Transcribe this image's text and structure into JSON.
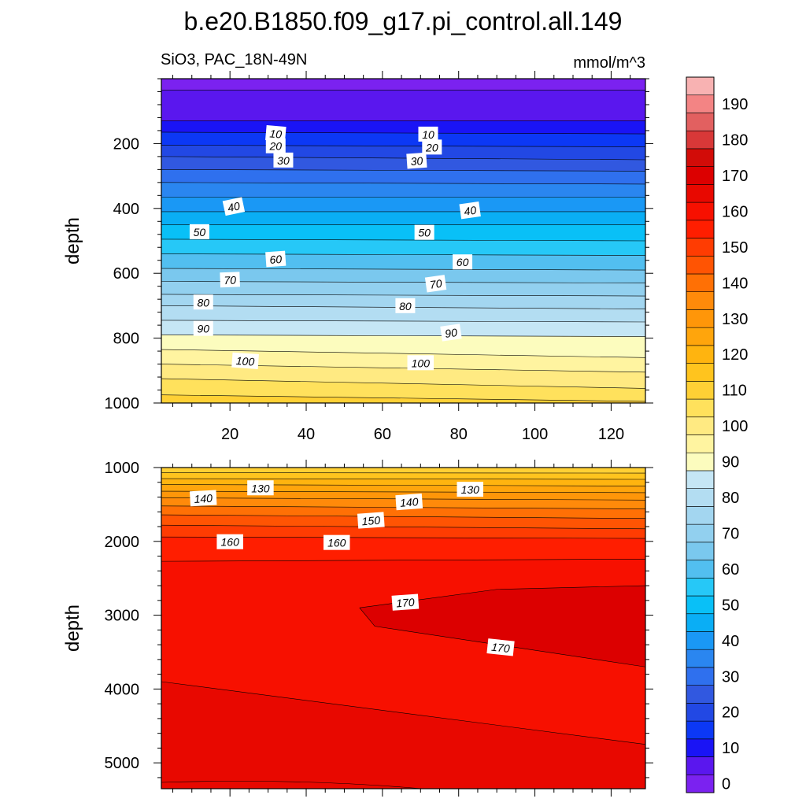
{
  "title": "b.e20.B1850.f09_g17.pi_control.all.149",
  "subtitle_left": "SiO3, PAC_18N-49N",
  "subtitle_right": "mmol/m^3",
  "chart_data": {
    "type": "heatmap",
    "title": "b.e20.B1850.f09_g17.pi_control.all.149",
    "variable": "SiO3",
    "region": "PAC_18N-49N",
    "units": "mmol/m^3",
    "x": {
      "range": [
        2,
        129
      ],
      "ticks": [
        20,
        40,
        60,
        80,
        100,
        120
      ],
      "label": ""
    },
    "colorbar": {
      "levels": [
        0,
        5,
        10,
        15,
        20,
        25,
        30,
        35,
        40,
        45,
        50,
        55,
        60,
        65,
        70,
        75,
        80,
        85,
        90,
        95,
        100,
        105,
        110,
        115,
        120,
        125,
        130,
        135,
        140,
        145,
        150,
        155,
        160,
        165,
        170,
        175,
        180,
        185,
        190,
        195
      ],
      "labels": [
        "0",
        "10",
        "20",
        "30",
        "40",
        "50",
        "60",
        "70",
        "80",
        "90",
        "100",
        "110",
        "120",
        "130",
        "140",
        "150",
        "160",
        "170",
        "180",
        "190"
      ],
      "colors": [
        "#7b22f0",
        "#5a17ee",
        "#1a14f5",
        "#0c38f5",
        "#2248e4",
        "#3158e0",
        "#2f70ee",
        "#2a86f0",
        "#1a98f5",
        "#0aaef5",
        "#09c0f7",
        "#26c8f7",
        "#52bff0",
        "#7ac8ee",
        "#92d0ef",
        "#a3d6f0",
        "#b3ddf2",
        "#c5e6f5",
        "#fcfcbe",
        "#fff4a0",
        "#ffea82",
        "#ffe15c",
        "#ffd035",
        "#ffc41e",
        "#ffb40f",
        "#ffa50c",
        "#ff9609",
        "#ff8a0a",
        "#ff7005",
        "#ff5403",
        "#ff3c02",
        "#ff1e00",
        "#f71000",
        "#e80800",
        "#dc0000",
        "#d20c08",
        "#d83838",
        "#e26060",
        "#f38484",
        "#f8b2b2"
      ]
    },
    "panels": [
      {
        "name": "upper",
        "ylabel": "depth",
        "y": {
          "range": [
            0,
            1000
          ],
          "reversed": true,
          "ticks": [
            200,
            400,
            600,
            800,
            1000
          ]
        },
        "contours": [
          {
            "level": 5,
            "depth_left": 35,
            "depth_right": 35
          },
          {
            "level": 10,
            "depth_left": 130,
            "depth_right": 130
          },
          {
            "level": 15,
            "depth_left": 165,
            "depth_right": 170
          },
          {
            "level": 20,
            "depth_left": 205,
            "depth_right": 210
          },
          {
            "level": 25,
            "depth_left": 240,
            "depth_right": 250
          },
          {
            "level": 30,
            "depth_left": 280,
            "depth_right": 285
          },
          {
            "level": 35,
            "depth_left": 320,
            "depth_right": 325
          },
          {
            "level": 40,
            "depth_left": 365,
            "depth_right": 365
          },
          {
            "level": 45,
            "depth_left": 410,
            "depth_right": 410
          },
          {
            "level": 50,
            "depth_left": 450,
            "depth_right": 450
          },
          {
            "level": 55,
            "depth_left": 495,
            "depth_right": 500
          },
          {
            "level": 60,
            "depth_left": 540,
            "depth_right": 545
          },
          {
            "level": 65,
            "depth_left": 585,
            "depth_right": 590
          },
          {
            "level": 70,
            "depth_left": 625,
            "depth_right": 630
          },
          {
            "level": 75,
            "depth_left": 665,
            "depth_right": 670
          },
          {
            "level": 80,
            "depth_left": 700,
            "depth_right": 710
          },
          {
            "level": 85,
            "depth_left": 745,
            "depth_right": 750
          },
          {
            "level": 90,
            "depth_left": 790,
            "depth_right": 795
          },
          {
            "level": 95,
            "depth_left": 835,
            "depth_right": 860
          },
          {
            "level": 100,
            "depth_left": 880,
            "depth_right": 905
          },
          {
            "level": 105,
            "depth_left": 925,
            "depth_right": 955
          },
          {
            "level": 110,
            "depth_left": 975,
            "depth_right": 995
          }
        ],
        "labels": [
          {
            "text": "10",
            "x": 32,
            "depth": 170,
            "angle": 5
          },
          {
            "text": "10",
            "x": 72,
            "depth": 172,
            "angle": 0
          },
          {
            "text": "20",
            "x": 32,
            "depth": 208,
            "angle": 0
          },
          {
            "text": "20",
            "x": 73,
            "depth": 212,
            "angle": 0
          },
          {
            "text": "30",
            "x": 34,
            "depth": 252,
            "angle": 0
          },
          {
            "text": "30",
            "x": 69,
            "depth": 254,
            "angle": -4
          },
          {
            "text": "40",
            "x": 21,
            "depth": 395,
            "angle": -12
          },
          {
            "text": "40",
            "x": 83,
            "depth": 407,
            "angle": -8
          },
          {
            "text": "50",
            "x": 12,
            "depth": 473,
            "angle": 0
          },
          {
            "text": "50",
            "x": 71,
            "depth": 475,
            "angle": 0
          },
          {
            "text": "60",
            "x": 32,
            "depth": 557,
            "angle": -4
          },
          {
            "text": "60",
            "x": 81,
            "depth": 566,
            "angle": 0
          },
          {
            "text": "70",
            "x": 20,
            "depth": 621,
            "angle": -2
          },
          {
            "text": "70",
            "x": 74,
            "depth": 633,
            "angle": -8
          },
          {
            "text": "80",
            "x": 13,
            "depth": 690,
            "angle": 0
          },
          {
            "text": "80",
            "x": 66,
            "depth": 701,
            "angle": 0
          },
          {
            "text": "90",
            "x": 13,
            "depth": 771,
            "angle": 0
          },
          {
            "text": "90",
            "x": 78,
            "depth": 784,
            "angle": -8
          },
          {
            "text": "100",
            "x": 24,
            "depth": 871,
            "angle": 4
          },
          {
            "text": "100",
            "x": 70,
            "depth": 877,
            "angle": 0
          }
        ]
      },
      {
        "name": "lower",
        "ylabel": "depth",
        "y": {
          "range": [
            1000,
            5350
          ],
          "reversed": true,
          "ticks": [
            1000,
            2000,
            3000,
            4000,
            5000
          ]
        },
        "contours": [
          {
            "level": 115,
            "depth_left": 1070,
            "depth_right": 1075
          },
          {
            "level": 120,
            "depth_left": 1150,
            "depth_right": 1160
          },
          {
            "level": 125,
            "depth_left": 1230,
            "depth_right": 1250
          },
          {
            "level": 130,
            "depth_left": 1320,
            "depth_right": 1340
          },
          {
            "level": 135,
            "depth_left": 1410,
            "depth_right": 1440
          },
          {
            "level": 140,
            "depth_left": 1520,
            "depth_right": 1560
          },
          {
            "level": 145,
            "depth_left": 1640,
            "depth_right": 1690
          },
          {
            "level": 150,
            "depth_left": 1780,
            "depth_right": 1830
          },
          {
            "level": 155,
            "depth_left": 1940,
            "depth_right": 1960
          },
          {
            "level": 160,
            "depth_left": 2270,
            "depth_right": 2240
          },
          {
            "level": 165,
            "depth_left": 3900,
            "depth_right": 4750
          }
        ],
        "labels": [
          {
            "text": "130",
            "x": 28,
            "depth": 1280,
            "angle": 0
          },
          {
            "text": "140",
            "x": 13,
            "depth": 1420,
            "angle": -3
          },
          {
            "text": "130",
            "x": 83,
            "depth": 1300,
            "angle": 0
          },
          {
            "text": "140",
            "x": 67,
            "depth": 1470,
            "angle": -4
          },
          {
            "text": "150",
            "x": 57,
            "depth": 1720,
            "angle": -4
          },
          {
            "text": "160",
            "x": 20,
            "depth": 2010,
            "angle": 0
          },
          {
            "text": "160",
            "x": 48,
            "depth": 2020,
            "angle": 0
          },
          {
            "text": "170",
            "x": 66,
            "depth": 2830,
            "angle": -4
          },
          {
            "text": "170",
            "x": 91,
            "depth": 3440,
            "angle": 6
          }
        ]
      }
    ]
  }
}
